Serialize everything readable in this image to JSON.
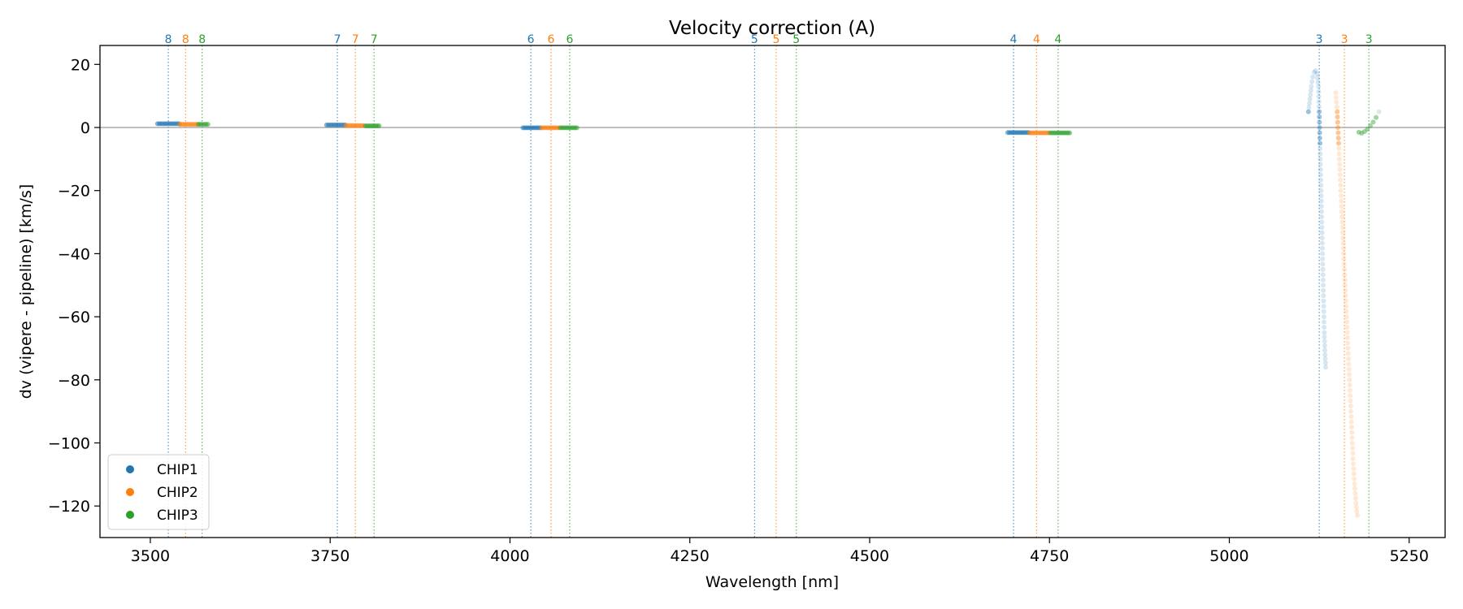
{
  "chart_data": {
    "type": "scatter",
    "title": "Velocity correction (A)",
    "xlabel": "Wavelength [nm]",
    "ylabel": "dv (vipere - pipeline) [km/s]",
    "xlim": [
      3430,
      5300
    ],
    "ylim": [
      -130,
      26
    ],
    "xticks": [
      3500,
      3750,
      4000,
      4250,
      4500,
      4750,
      5000,
      5250
    ],
    "yticks": [
      20,
      0,
      -20,
      -40,
      -60,
      -80,
      -100,
      -120
    ],
    "zero_line": true,
    "grid": false,
    "legend_position": "lower-left",
    "colors": {
      "CHIP1": "#1f77b4",
      "CHIP2": "#ff7f0e",
      "CHIP3": "#2ca02c"
    },
    "order_markers": [
      {
        "order": "8",
        "chip": "CHIP1",
        "x": 3525
      },
      {
        "order": "8",
        "chip": "CHIP2",
        "x": 3549
      },
      {
        "order": "8",
        "chip": "CHIP3",
        "x": 3572
      },
      {
        "order": "7",
        "chip": "CHIP1",
        "x": 3760
      },
      {
        "order": "7",
        "chip": "CHIP2",
        "x": 3785
      },
      {
        "order": "7",
        "chip": "CHIP3",
        "x": 3811
      },
      {
        "order": "6",
        "chip": "CHIP1",
        "x": 4029
      },
      {
        "order": "6",
        "chip": "CHIP2",
        "x": 4057
      },
      {
        "order": "6",
        "chip": "CHIP3",
        "x": 4083
      },
      {
        "order": "5",
        "chip": "CHIP1",
        "x": 4340
      },
      {
        "order": "5",
        "chip": "CHIP2",
        "x": 4370
      },
      {
        "order": "5",
        "chip": "CHIP3",
        "x": 4398
      },
      {
        "order": "4",
        "chip": "CHIP1",
        "x": 4700
      },
      {
        "order": "4",
        "chip": "CHIP2",
        "x": 4732
      },
      {
        "order": "4",
        "chip": "CHIP3",
        "x": 4762
      },
      {
        "order": "3",
        "chip": "CHIP1",
        "x": 5125
      },
      {
        "order": "3",
        "chip": "CHIP2",
        "x": 5160
      },
      {
        "order": "3",
        "chip": "CHIP3",
        "x": 5194
      }
    ],
    "series": [
      {
        "name": "CHIP1",
        "segments": [
          {
            "order": "8",
            "x_range": [
              3510,
              3540
            ],
            "y": 1.2
          },
          {
            "order": "7",
            "x_range": [
              3745,
              3771
            ],
            "y": 0.8
          },
          {
            "order": "6",
            "x_range": [
              4018,
              4042
            ],
            "y": -0.1
          },
          {
            "order": "4",
            "x_range": [
              4692,
              4721
            ],
            "y": -1.6
          },
          {
            "order": "3",
            "curve": [
              [
                5110,
                5
              ],
              [
                5112,
                9
              ],
              [
                5114,
                13
              ],
              [
                5116,
                16
              ],
              [
                5118,
                17.5
              ],
              [
                5120,
                18
              ],
              [
                5122,
                17
              ],
              [
                5124,
                13
              ],
              [
                5125,
                5
              ],
              [
                5126,
                -5
              ],
              [
                5127,
                -15
              ],
              [
                5128,
                -25
              ],
              [
                5129,
                -35
              ],
              [
                5130,
                -45
              ],
              [
                5131,
                -55
              ],
              [
                5132,
                -65
              ],
              [
                5133,
                -72
              ],
              [
                5134,
                -76
              ]
            ]
          }
        ]
      },
      {
        "name": "CHIP2",
        "segments": [
          {
            "order": "8",
            "x_range": [
              3541,
              3566
            ],
            "y": 1.0
          },
          {
            "order": "7",
            "x_range": [
              3772,
              3797
            ],
            "y": 0.6
          },
          {
            "order": "6",
            "x_range": [
              4044,
              4068
            ],
            "y": -0.1
          },
          {
            "order": "4",
            "x_range": [
              4722,
              4749
            ],
            "y": -1.7
          },
          {
            "order": "3",
            "curve": [
              [
                5148,
                11
              ],
              [
                5150,
                5
              ],
              [
                5152,
                -5
              ],
              [
                5154,
                -15
              ],
              [
                5156,
                -25
              ],
              [
                5158,
                -35
              ],
              [
                5160,
                -45
              ],
              [
                5162,
                -55
              ],
              [
                5164,
                -65
              ],
              [
                5166,
                -75
              ],
              [
                5168,
                -85
              ],
              [
                5170,
                -95
              ],
              [
                5172,
                -105
              ],
              [
                5174,
                -113
              ],
              [
                5176,
                -119
              ],
              [
                5178,
                -123
              ]
            ]
          }
        ]
      },
      {
        "name": "CHIP3",
        "segments": [
          {
            "order": "8",
            "x_range": [
              3567,
              3580
            ],
            "y": 1.0
          },
          {
            "order": "7",
            "x_range": [
              3799,
              3818
            ],
            "y": 0.5
          },
          {
            "order": "6",
            "x_range": [
              4070,
              4093
            ],
            "y": -0.1
          },
          {
            "order": "4",
            "x_range": [
              4751,
              4778
            ],
            "y": -1.7
          },
          {
            "order": "3",
            "curve": [
              [
                5180,
                -1.5
              ],
              [
                5184,
                -1.8
              ],
              [
                5188,
                -1.3
              ],
              [
                5192,
                -0.5
              ],
              [
                5196,
                0.5
              ],
              [
                5200,
                1.7
              ],
              [
                5204,
                3.2
              ],
              [
                5208,
                5
              ]
            ]
          }
        ]
      }
    ]
  }
}
